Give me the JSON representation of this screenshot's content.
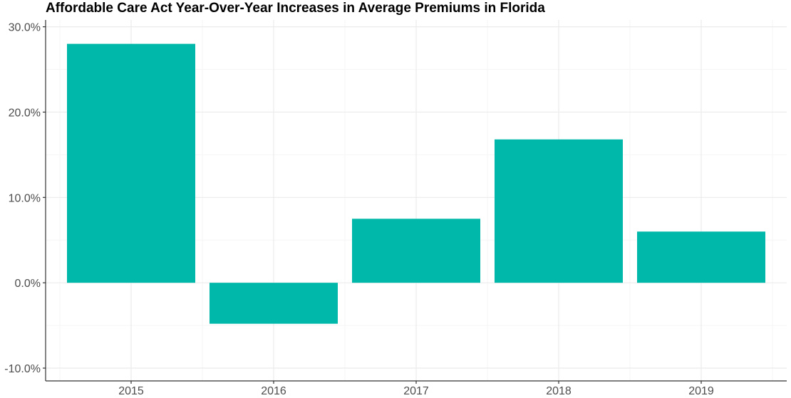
{
  "chart_data": {
    "type": "bar",
    "title": "Affordable Care Act Year-Over-Year Increases in Average Premiums in Florida",
    "xlabel": "",
    "ylabel": "",
    "categories": [
      "2015",
      "2016",
      "2017",
      "2018",
      "2019"
    ],
    "values": [
      28.0,
      -4.8,
      7.5,
      16.8,
      6.0
    ],
    "y_ticks": [
      -10,
      0,
      10,
      20,
      30
    ],
    "y_tick_labels": [
      "-10.0%",
      "0.0%",
      "10.0%",
      "20.0%",
      "30.0%"
    ],
    "ylim": [
      -11.5,
      30.8
    ],
    "grid": true,
    "legend": "none",
    "colors": {
      "bar": "#00b8a9",
      "grid_major": "#ebebeb",
      "grid_minor": "#f5f5f5",
      "axis": "#333333"
    }
  }
}
